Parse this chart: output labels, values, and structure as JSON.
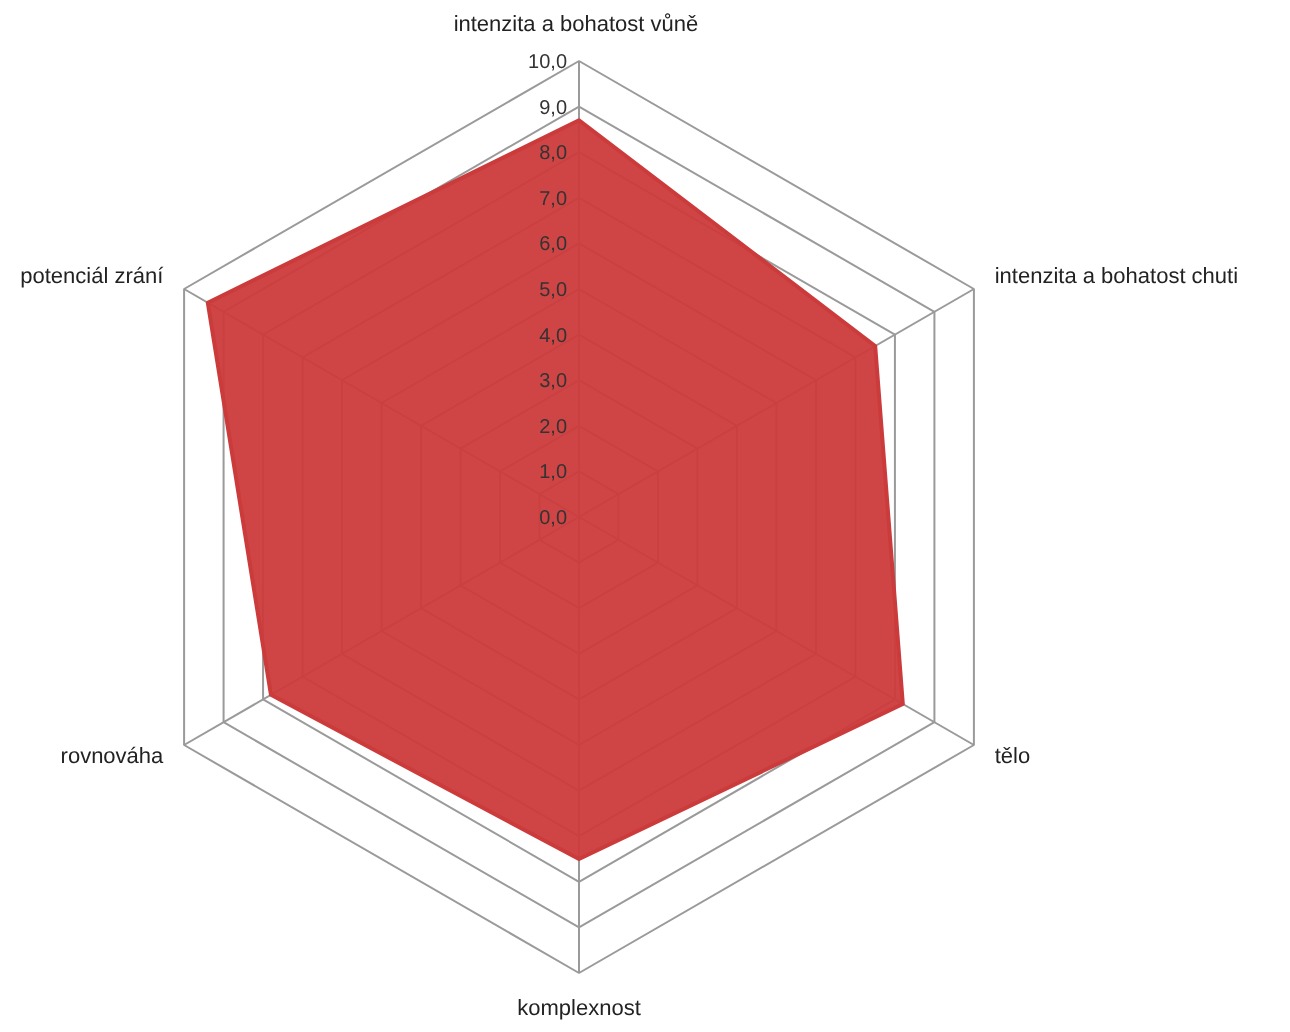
{
  "chart_data": {
    "type": "radar",
    "categories": [
      "intenzita a bohatost  vůně",
      "intenzita a bohatost  chuti",
      "tělo",
      "komplexnost",
      "rovnováha",
      "potenciál zrání"
    ],
    "series": [
      {
        "color": "#cc3b3b",
        "values": [
          8.7,
          7.5,
          8.2,
          7.5,
          7.8,
          9.4
        ]
      }
    ],
    "ylim": [
      0,
      10
    ],
    "yticks": [
      {
        "value": 0,
        "label": "0,0"
      },
      {
        "value": 1,
        "label": "1,0"
      },
      {
        "value": 2,
        "label": "2,0"
      },
      {
        "value": 3,
        "label": "3,0"
      },
      {
        "value": 4,
        "label": "4,0"
      },
      {
        "value": 5,
        "label": "5,0"
      },
      {
        "value": 6,
        "label": "6,0"
      },
      {
        "value": 7,
        "label": "7,0"
      },
      {
        "value": 8,
        "label": "8,0"
      },
      {
        "value": 9,
        "label": "9,0"
      },
      {
        "value": 10,
        "label": "10,0"
      }
    ],
    "grid": true
  }
}
